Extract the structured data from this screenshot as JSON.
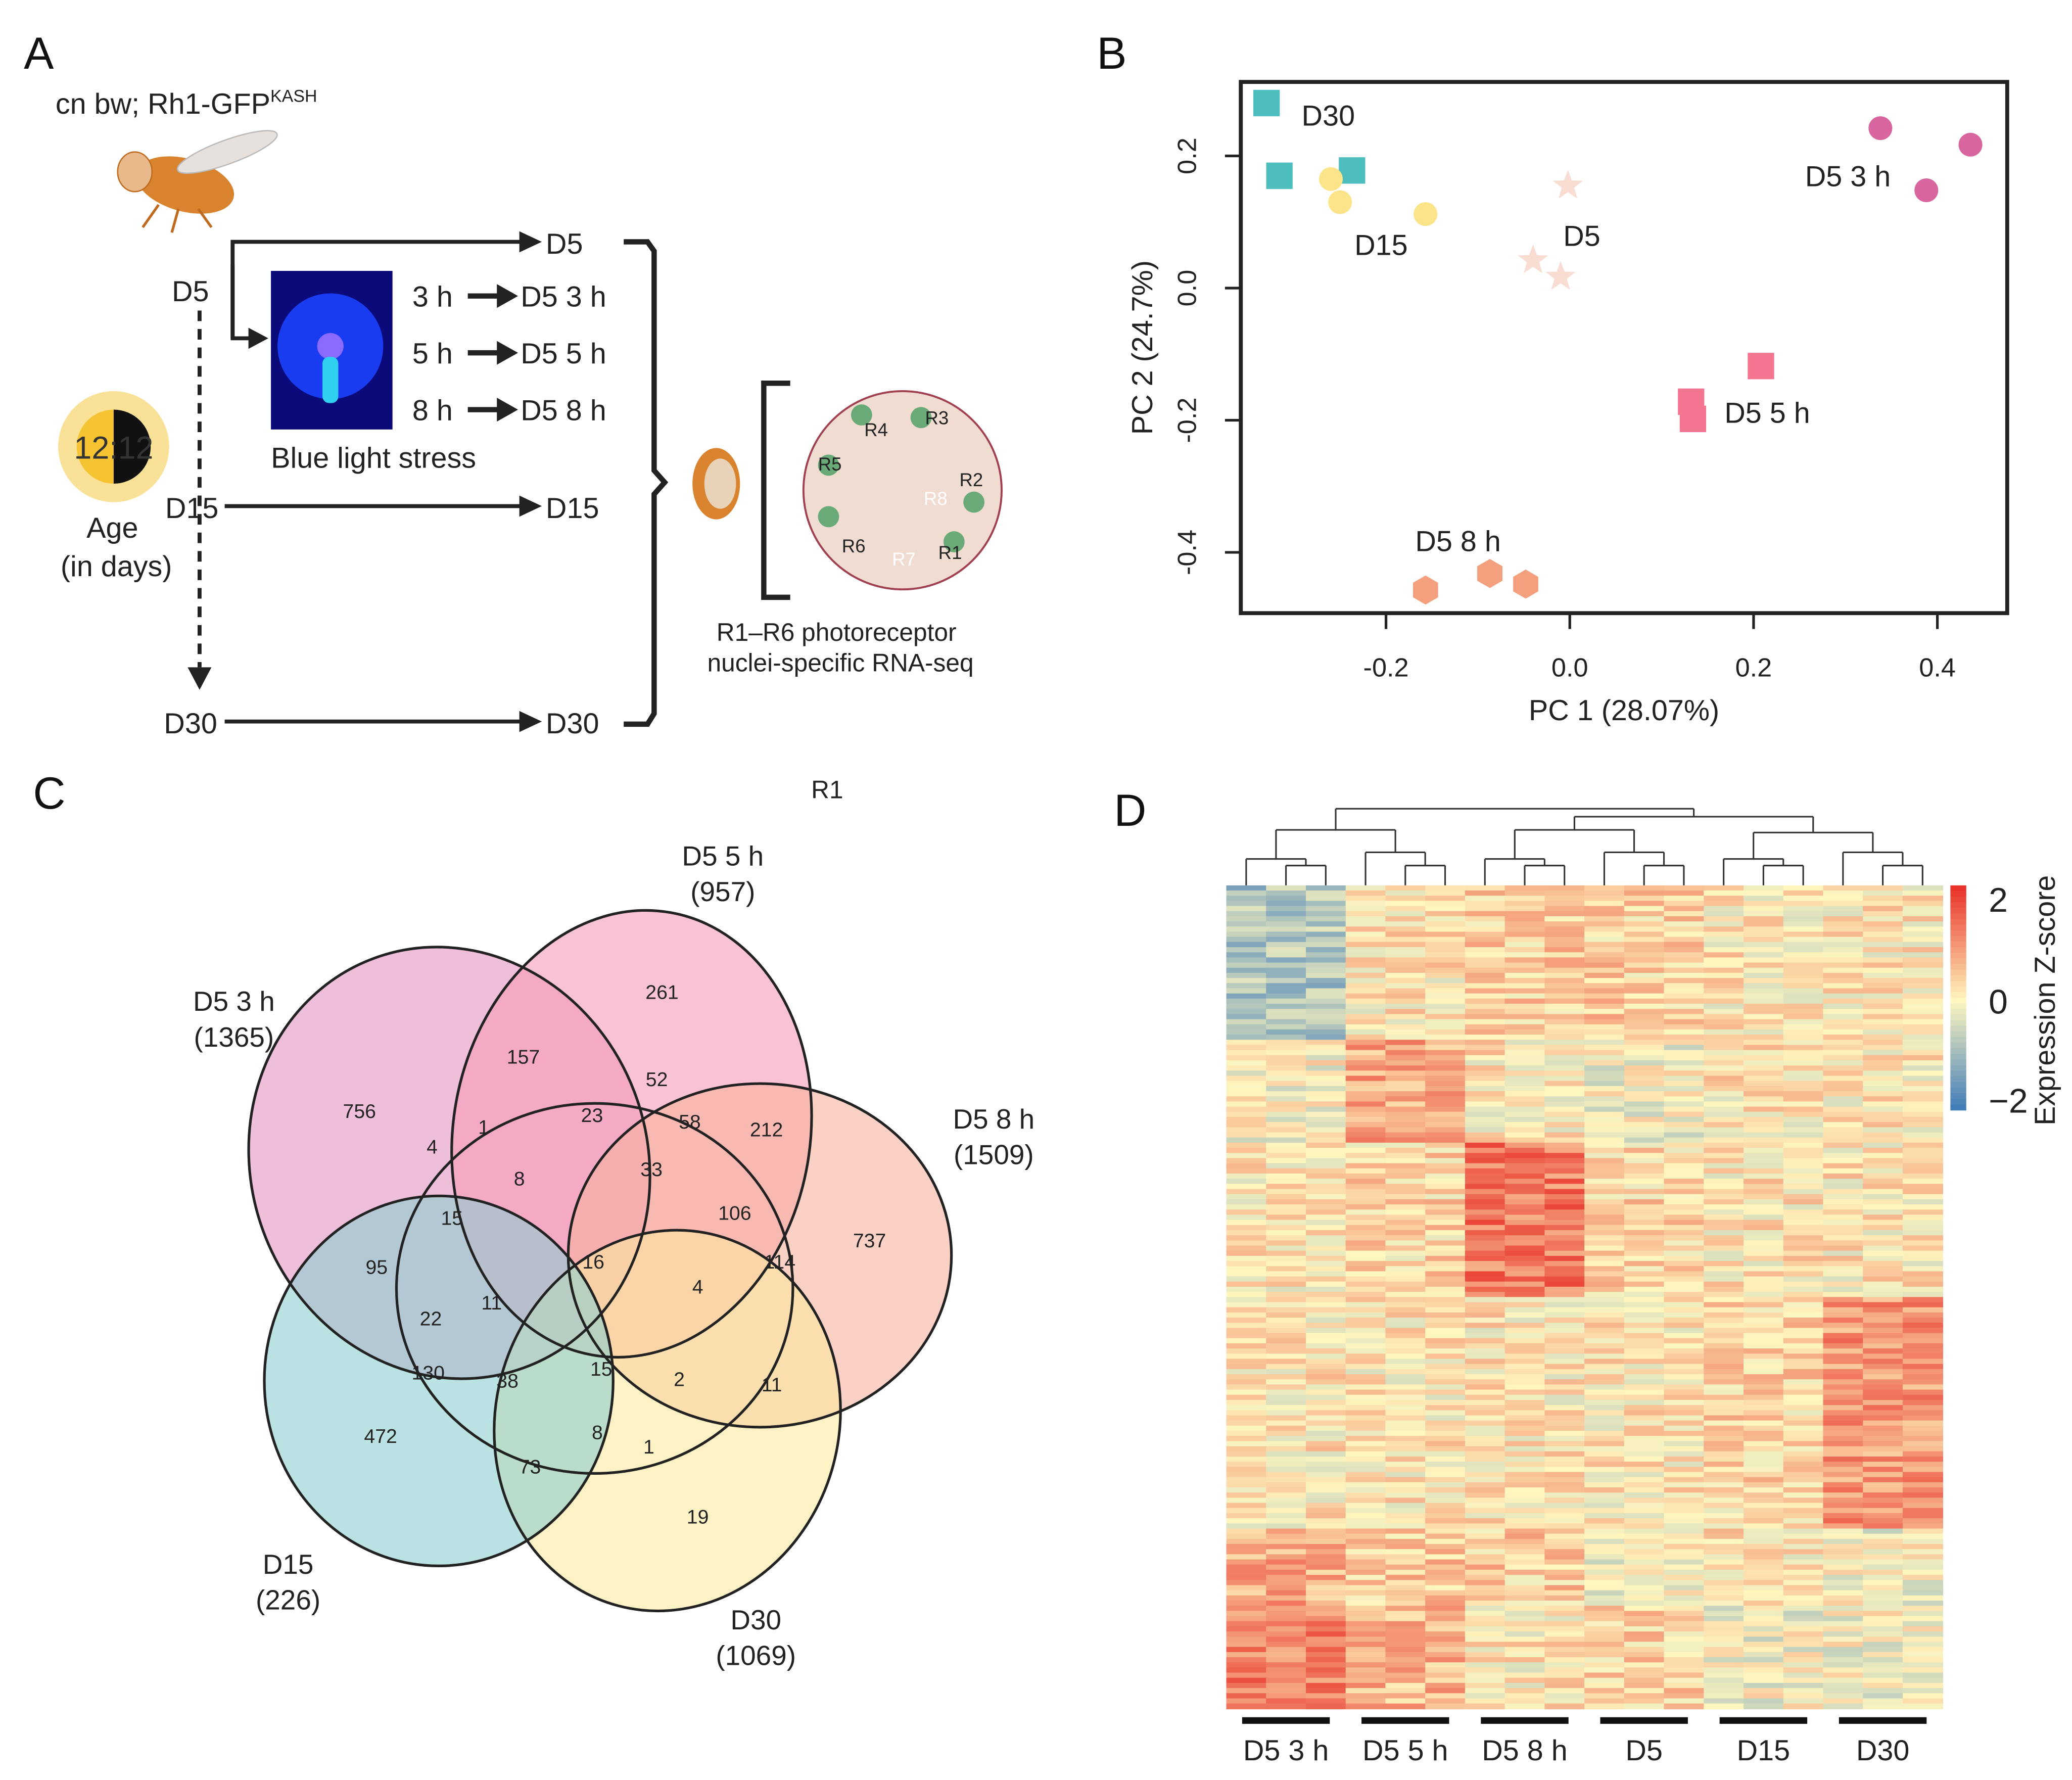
{
  "panels": {
    "a": "A",
    "b": "B",
    "c": "C",
    "d": "D"
  },
  "panel_a": {
    "genotype": "cn bw; Rh1-GFP",
    "genotype_sup": "KASH",
    "age_start": "D5",
    "age_mid": "D15",
    "age_end": "D30",
    "light_cycle": "12:12",
    "age_label_1": "Age",
    "age_label_2": "(in days)",
    "branch_d5": "D5",
    "stress_rows": [
      {
        "duration": "3 h",
        "result": "D5 3 h"
      },
      {
        "duration": "5 h",
        "result": "D5 5 h"
      },
      {
        "duration": "8 h",
        "result": "D5 8 h"
      }
    ],
    "stress_caption": "Blue light stress",
    "branch_d15": "D15",
    "branch_d30": "D30",
    "cells": [
      "R1",
      "R2",
      "R3",
      "R4",
      "R5",
      "R6",
      "R7",
      "R8"
    ],
    "method_1": "R1–R6 photoreceptor",
    "method_2": "nuclei-specific RNA-seq"
  },
  "chart_data": [
    {
      "type": "scatter",
      "xlabel": "PC 1 (28.07%)",
      "ylabel": "PC 2 (24.7%)",
      "xlim": [
        -0.358,
        0.476
      ],
      "ylim": [
        -0.492,
        0.312
      ],
      "xticks": [
        "-0.2",
        "0.0",
        "0.2",
        "0.4"
      ],
      "yticks": [
        "0.2",
        "0.0",
        "-0.2",
        "-0.4"
      ],
      "grid": false,
      "series": [
        {
          "name": "D30",
          "marker": "square",
          "color": "#4dbdbd",
          "points": [
            [
              -0.33,
              0.28
            ],
            [
              -0.316,
              0.17
            ],
            [
              -0.237,
              0.178
            ]
          ]
        },
        {
          "name": "D15",
          "marker": "circle",
          "color": "#fbe48a",
          "points": [
            [
              -0.26,
              0.165
            ],
            [
              -0.25,
              0.13
            ],
            [
              -0.157,
              0.112
            ]
          ]
        },
        {
          "name": "D5",
          "marker": "star",
          "color": "#f9dcd2",
          "points": [
            [
              -0.002,
              0.155
            ],
            [
              -0.04,
              0.042
            ],
            [
              -0.01,
              0.017
            ]
          ]
        },
        {
          "name": "D5 3 h",
          "marker": "circle",
          "color": "#d9659f",
          "points": [
            [
              0.338,
              0.242
            ],
            [
              0.388,
              0.148
            ],
            [
              0.436,
              0.217
            ]
          ]
        },
        {
          "name": "D5 5 h",
          "marker": "square",
          "color": "#f47590",
          "points": [
            [
              0.208,
              -0.118
            ],
            [
              0.132,
              -0.172
            ],
            [
              0.134,
              -0.198
            ]
          ]
        },
        {
          "name": "D5 8 h",
          "marker": "hexagon",
          "color": "#f4a07e",
          "points": [
            [
              -0.157,
              -0.457
            ],
            [
              -0.087,
              -0.432
            ],
            [
              -0.048,
              -0.448
            ]
          ]
        }
      ]
    },
    {
      "type": "venn",
      "title": "R1",
      "sets": [
        {
          "name": "D5 3 h",
          "count": "(1365)",
          "color": "#e493c3"
        },
        {
          "name": "D5 5 h",
          "count": "(957)",
          "color": "#f79bb5"
        },
        {
          "name": "D5 8 h",
          "count": "(1509)",
          "color": "#f9b39e"
        },
        {
          "name": "D15",
          "count": "(226)",
          "color": "#fbe7a0"
        },
        {
          "name": "D30",
          "count": "(1069)",
          "color": "#8ccfcf"
        }
      ],
      "region_values": [
        "756",
        "157",
        "261",
        "52",
        "23",
        "1",
        "4",
        "58",
        "212",
        "33",
        "8",
        "106",
        "15",
        "16",
        "737",
        "95",
        "114",
        "4",
        "22",
        "11",
        "130",
        "38",
        "15",
        "2",
        "11",
        "472",
        "8",
        "1",
        "73",
        "19"
      ]
    },
    {
      "type": "heatmap",
      "groups": [
        "D5 3 h",
        "D5 5 h",
        "D5 8 h",
        "D5",
        "D15",
        "D30"
      ],
      "replicates_per_group": 3,
      "colorbar": {
        "label": "Expression Z-score",
        "ticks": [
          "2",
          "0",
          "−2"
        ],
        "range": [
          -2,
          2
        ],
        "colors": [
          "#3a78b8",
          "#fff7bf",
          "#e8332a"
        ]
      }
    }
  ]
}
